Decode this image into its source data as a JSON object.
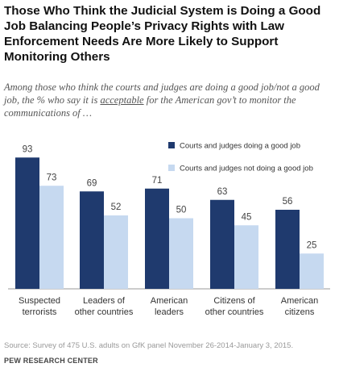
{
  "title": "Those Who Think the Judicial System is Doing a Good Job Balancing People’s Privacy Rights with Law Enforcement Needs Are More Likely to Support Monitoring Others",
  "subtitle_parts": {
    "before": "Among those who think the courts and judges are doing a good job/not a good job, the % who say it is ",
    "underlined": "acceptable",
    "after": " for the American gov’t to monitor the communications of …"
  },
  "chart_data": {
    "type": "bar",
    "categories": [
      [
        "Suspected",
        "terrorists"
      ],
      [
        "Leaders of",
        "other countries"
      ],
      [
        "American",
        "leaders"
      ],
      [
        "Citizens of",
        "other countries"
      ],
      [
        "American",
        "citizens"
      ]
    ],
    "series": [
      {
        "name": "Courts and judges doing a good job",
        "values": [
          93,
          69,
          71,
          63,
          56
        ],
        "color": "#1f3a6e"
      },
      {
        "name": "Courts and judges not doing a good job",
        "values": [
          73,
          52,
          50,
          45,
          25
        ],
        "color": "#c6d9f0"
      }
    ],
    "ylim": [
      0,
      100
    ],
    "grid": false,
    "legend_position": "top-right"
  },
  "source": "Source: Survey of 475 U.S. adults on GfK panel November 26-2014-January 3, 2015.",
  "credit": "PEW RESEARCH CENTER"
}
